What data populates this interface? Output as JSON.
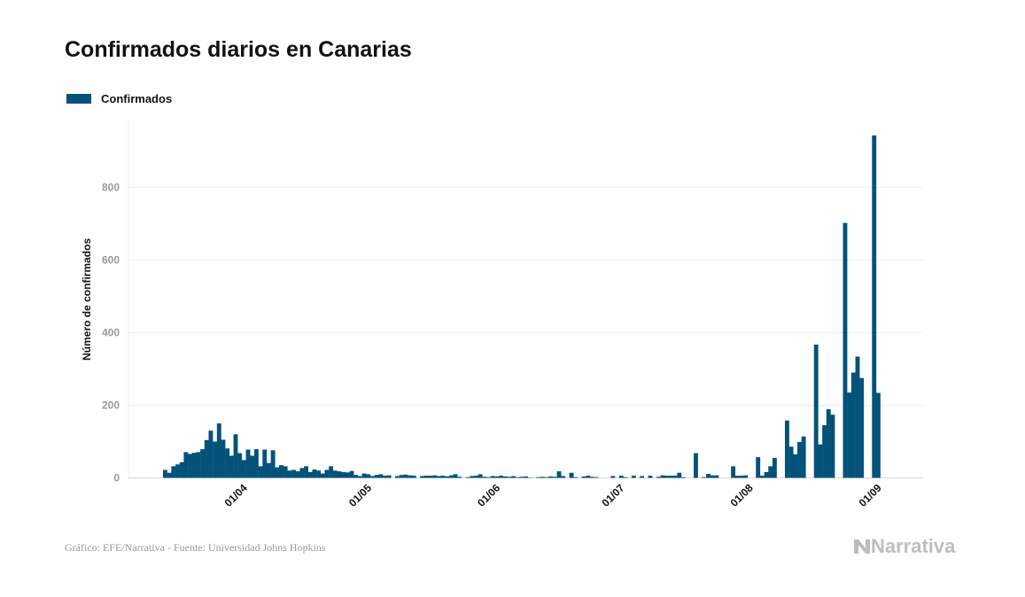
{
  "chart_data": {
    "type": "bar",
    "title": "Confirmados diarios en Canarias",
    "ylabel": "Número de confirmados",
    "xlabel": "",
    "ylim": [
      0,
      950
    ],
    "yticks": [
      0,
      200,
      400,
      600,
      800
    ],
    "xticks": [
      "01/04",
      "01/05",
      "01/06",
      "01/07",
      "01/08",
      "01/09"
    ],
    "grid": true,
    "legend_placement": "top-left",
    "color": "#03527a",
    "categories": [
      "12/03",
      "13/03",
      "14/03",
      "15/03",
      "16/03",
      "17/03",
      "18/03",
      "19/03",
      "20/03",
      "21/03",
      "22/03",
      "23/03",
      "24/03",
      "25/03",
      "26/03",
      "27/03",
      "28/03",
      "29/03",
      "30/03",
      "31/03",
      "01/04",
      "02/04",
      "03/04",
      "04/04",
      "05/04",
      "06/04",
      "07/04",
      "08/04",
      "09/04",
      "10/04",
      "11/04",
      "12/04",
      "13/04",
      "14/04",
      "15/04",
      "16/04",
      "17/04",
      "18/04",
      "19/04",
      "20/04",
      "21/04",
      "22/04",
      "23/04",
      "24/04",
      "25/04",
      "26/04",
      "27/04",
      "28/04",
      "29/04",
      "30/04",
      "01/05",
      "02/05",
      "03/05",
      "04/05",
      "05/05",
      "06/05",
      "07/05",
      "08/05",
      "09/05",
      "10/05",
      "11/05",
      "12/05",
      "13/05",
      "14/05",
      "15/05",
      "16/05",
      "17/05",
      "18/05",
      "19/05",
      "20/05",
      "21/05",
      "22/05",
      "23/05",
      "24/05",
      "25/05",
      "26/05",
      "27/05",
      "28/05",
      "29/05",
      "30/05",
      "31/05",
      "01/06",
      "02/06",
      "03/06",
      "04/06",
      "05/06",
      "06/06",
      "07/06",
      "08/06",
      "09/06",
      "10/06",
      "11/06",
      "12/06",
      "13/06",
      "14/06",
      "15/06",
      "16/06",
      "17/06",
      "18/06",
      "19/06",
      "20/06",
      "21/06",
      "22/06",
      "23/06",
      "24/06",
      "25/06",
      "26/06",
      "27/06",
      "28/06",
      "29/06",
      "30/06",
      "01/07",
      "02/07",
      "03/07",
      "04/07",
      "05/07",
      "06/07",
      "07/07",
      "08/07",
      "09/07",
      "10/07",
      "11/07",
      "12/07",
      "13/07",
      "14/07",
      "15/07",
      "16/07",
      "17/07",
      "18/07",
      "19/07",
      "20/07",
      "21/07",
      "22/07",
      "23/07",
      "24/07",
      "25/07",
      "26/07",
      "27/07",
      "28/07",
      "29/07",
      "30/07",
      "31/07",
      "01/08",
      "02/08",
      "03/08",
      "04/08",
      "05/08",
      "06/08",
      "07/08",
      "08/08",
      "09/08",
      "10/08",
      "11/08",
      "12/08",
      "13/08",
      "14/08",
      "15/08",
      "16/08",
      "17/08",
      "18/08",
      "19/08",
      "20/08",
      "21/08",
      "22/08",
      "23/08",
      "24/08",
      "25/08",
      "26/08",
      "27/08",
      "28/08",
      "29/08",
      "30/08",
      "31/08"
    ],
    "series": [
      {
        "name": "Confirmados",
        "values": [
          22,
          14,
          32,
          37,
          43,
          71,
          66,
          69,
          71,
          79,
          104,
          130,
          100,
          150,
          105,
          81,
          61,
          120,
          68,
          49,
          78,
          61,
          79,
          32,
          78,
          41,
          76,
          29,
          35,
          32,
          20,
          22,
          18,
          27,
          32,
          16,
          23,
          20,
          12,
          22,
          32,
          20,
          18,
          16,
          15,
          19,
          8,
          5,
          12,
          10,
          5,
          8,
          10,
          6,
          7,
          0,
          5,
          8,
          9,
          7,
          6,
          0,
          5,
          6,
          6,
          7,
          5,
          6,
          4,
          7,
          10,
          3,
          0,
          2,
          5,
          6,
          10,
          3,
          2,
          5,
          4,
          6,
          4,
          3,
          5,
          2,
          3,
          4,
          1,
          0,
          2,
          3,
          2,
          4,
          3,
          18,
          5,
          0,
          14,
          2,
          0,
          4,
          6,
          3,
          2,
          0,
          0,
          0,
          5,
          0,
          6,
          2,
          0,
          6,
          0,
          5,
          0,
          6,
          0,
          3,
          7,
          6,
          6,
          6,
          14,
          2,
          0,
          0,
          68,
          0,
          2,
          11,
          7,
          7,
          0,
          0,
          0,
          32,
          6,
          6,
          7,
          0,
          0,
          57,
          6,
          16,
          32,
          55,
          0,
          0,
          158,
          86,
          65,
          99,
          114,
          0,
          0,
          367,
          92,
          145,
          189,
          174,
          0,
          0,
          702,
          235,
          290,
          334,
          275,
          0,
          0,
          943,
          234
        ]
      }
    ]
  },
  "footer": {
    "source": "Gráfico: EFE/Narrativa - Fuente: Universidad Johns Hopkins",
    "logo": "Narrativa"
  }
}
